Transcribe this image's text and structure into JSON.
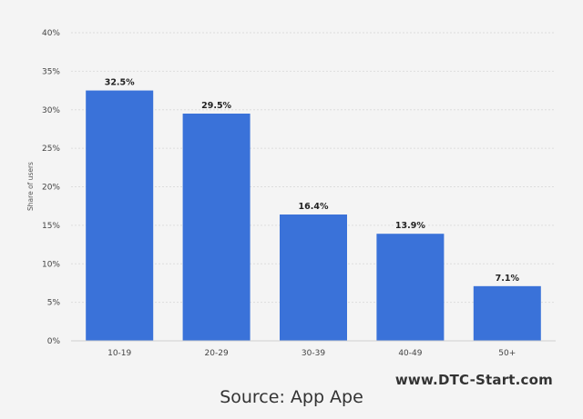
{
  "chart_data": {
    "type": "bar",
    "categories": [
      "10-19",
      "20-29",
      "30-39",
      "40-49",
      "50+"
    ],
    "values": [
      32.5,
      29.5,
      16.4,
      13.9,
      7.1
    ],
    "data_labels": [
      "32.5%",
      "29.5%",
      "16.4%",
      "13.9%",
      "7.1%"
    ],
    "ylabel": "Share of users",
    "ylim": [
      0,
      40
    ],
    "yticks": [
      0,
      5,
      10,
      15,
      20,
      25,
      30,
      35,
      40
    ],
    "ytick_labels": [
      "0%",
      "5%",
      "10%",
      "15%",
      "20%",
      "25%",
      "30%",
      "35%",
      "40%"
    ],
    "grid": true,
    "bar_color": "#3a72d9"
  },
  "watermark": "www.DTC-Start.com",
  "source": "Source: App Ape"
}
